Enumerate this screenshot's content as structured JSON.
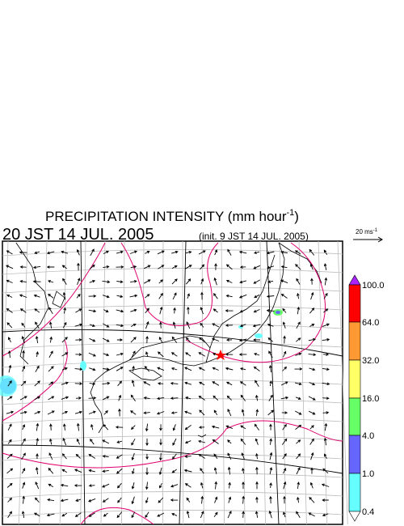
{
  "header": {
    "title": "PRECIPITATION INTENSITY (mm hour",
    "title_exponent": "-1",
    "title_close": ")",
    "valid_time": "20 JST 14 JUL. 2005",
    "init_time": "(init. 9 JST 14 JUL. 2005)"
  },
  "wind_legend": {
    "label": "20 ms",
    "exponent": "-1"
  },
  "colorbar": {
    "labels": [
      "100.0",
      "64.0",
      "32.0",
      "16.0",
      "4.0",
      "1.0",
      "0.4"
    ]
  }
}
